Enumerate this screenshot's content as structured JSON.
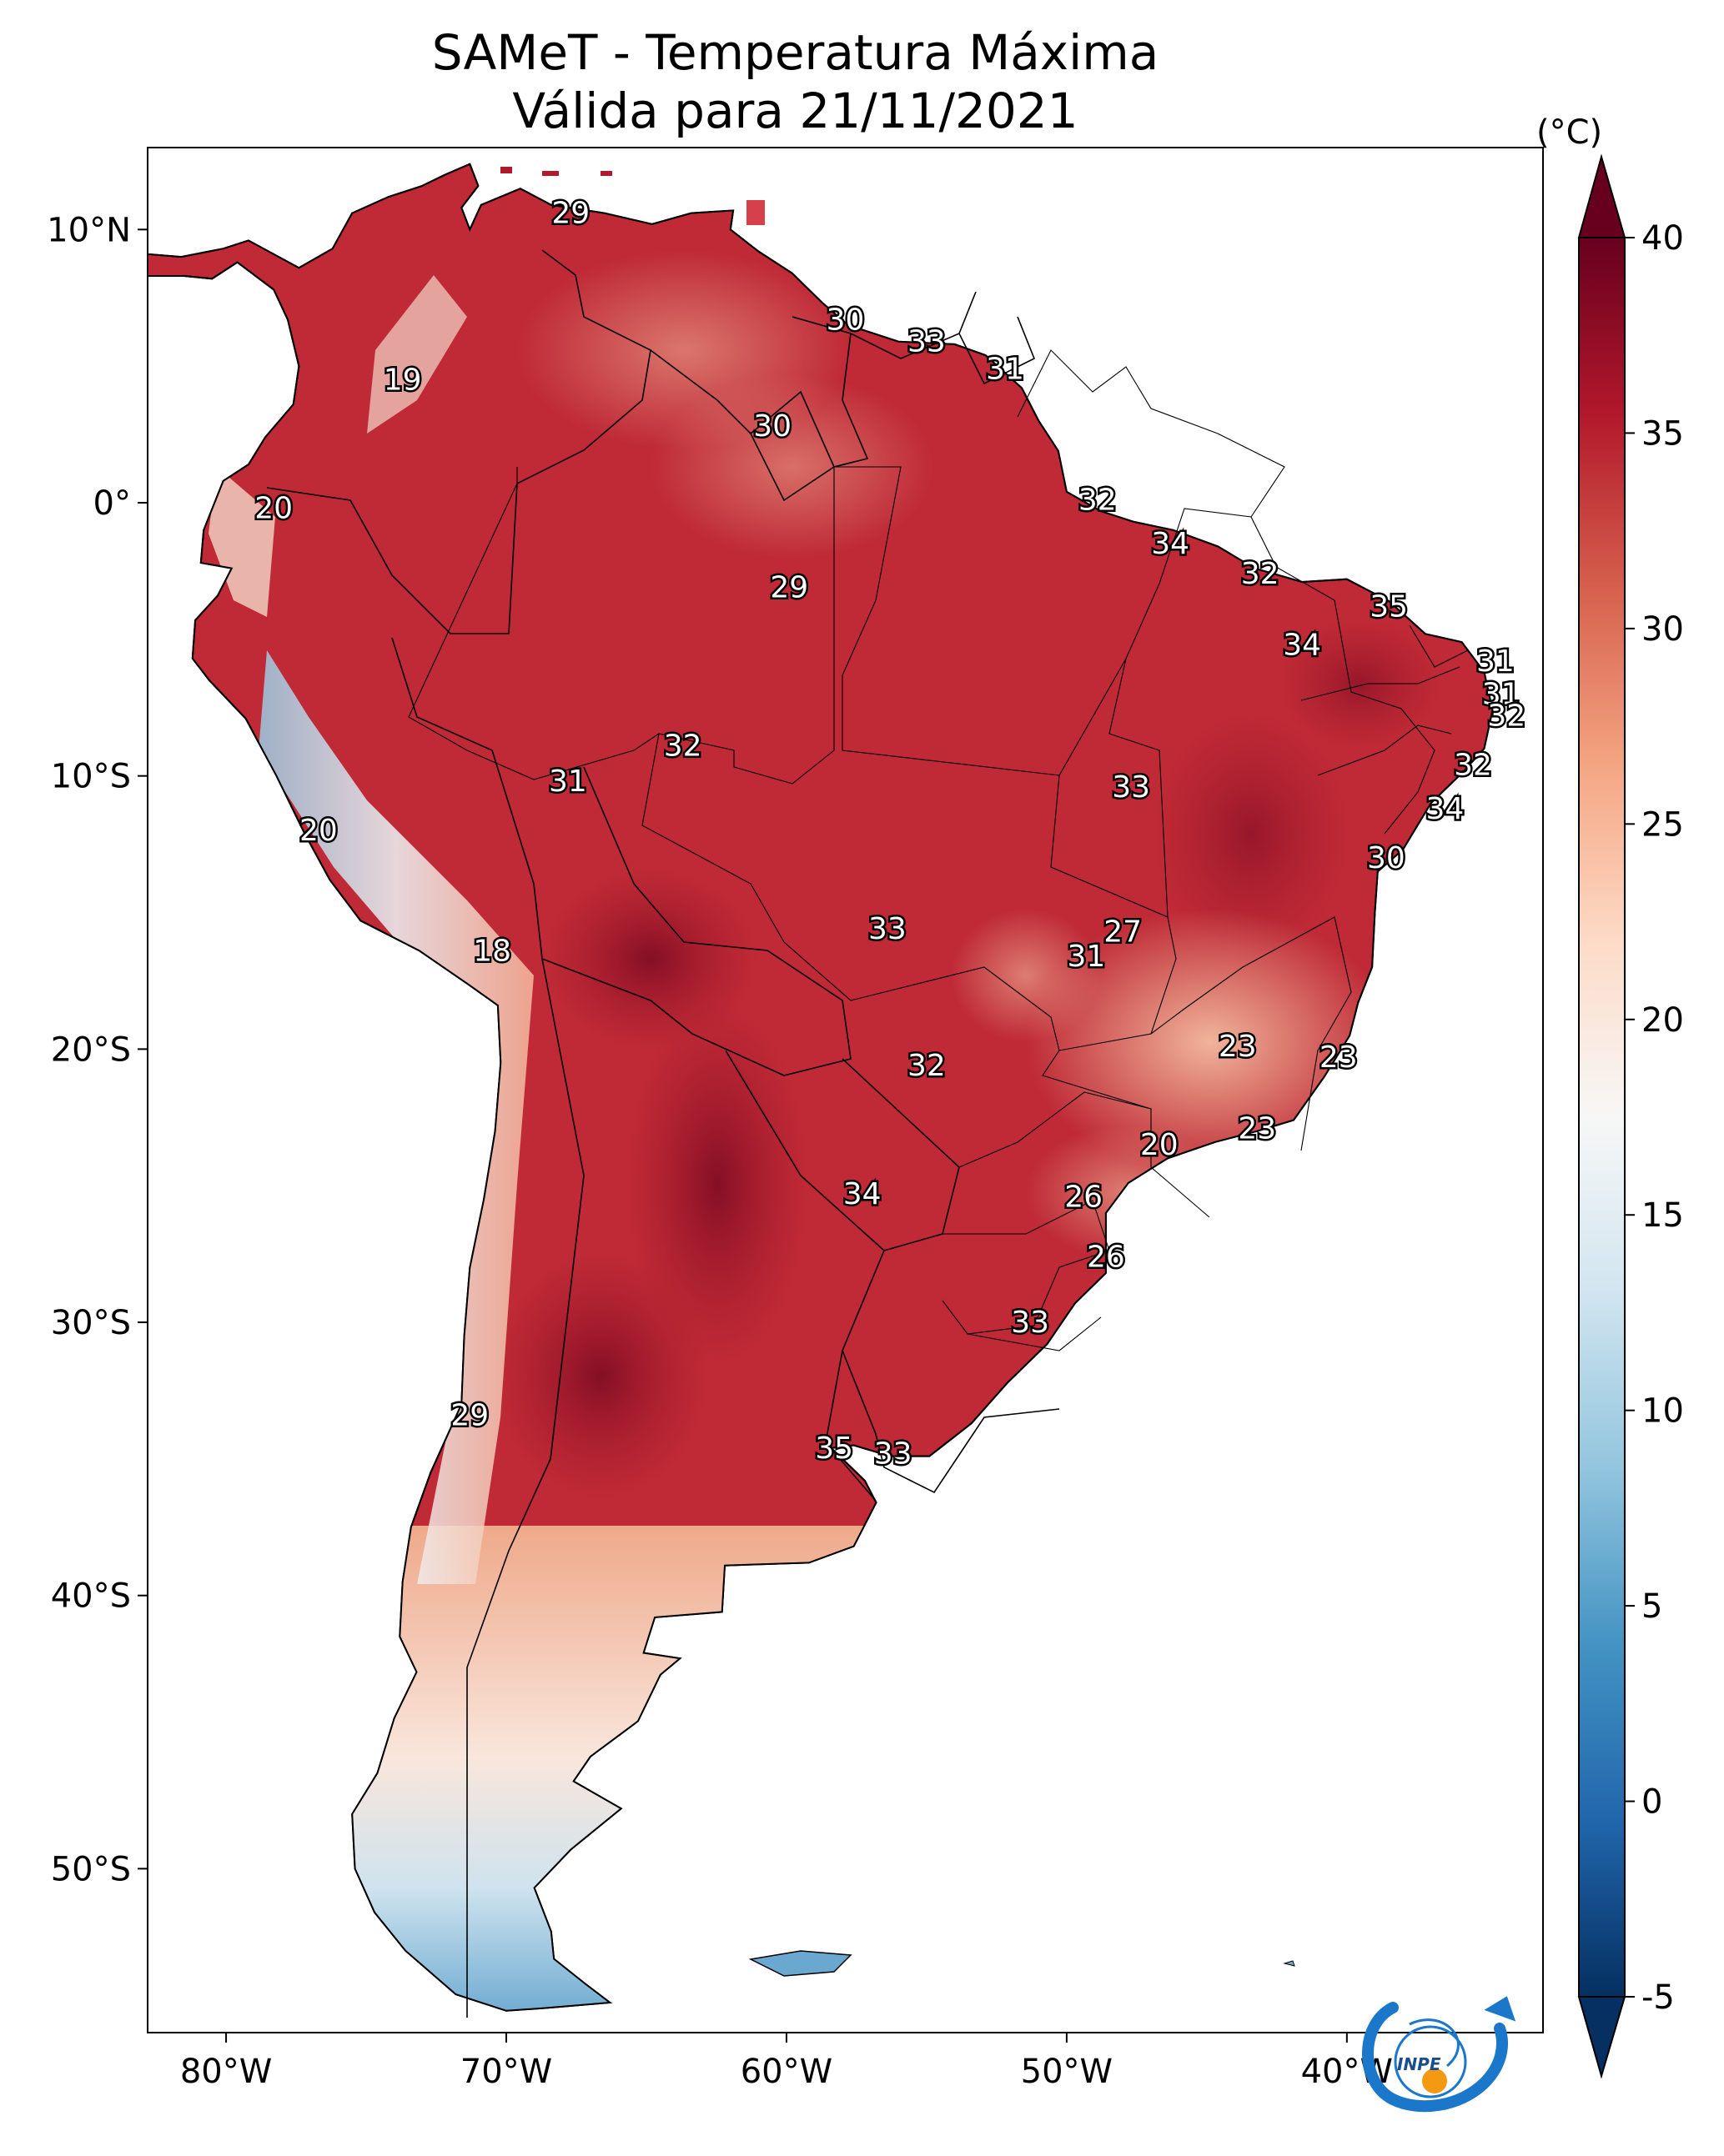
{
  "title": {
    "line1": "SAMeT - Temperatura Máxima",
    "line2": "Válida para 21/11/2021"
  },
  "map": {
    "lon_range": [
      -82.8,
      -33.0
    ],
    "lat_range": [
      -56.0,
      13.0
    ],
    "lon_ticks": [
      {
        "value": -80,
        "label": "80°W"
      },
      {
        "value": -70,
        "label": "70°W"
      },
      {
        "value": -60,
        "label": "60°W"
      },
      {
        "value": -50,
        "label": "50°W"
      },
      {
        "value": -40,
        "label": "40°W"
      }
    ],
    "lat_ticks": [
      {
        "value": 10,
        "label": "10°N"
      },
      {
        "value": 0,
        "label": "0°"
      },
      {
        "value": -10,
        "label": "10°S"
      },
      {
        "value": -20,
        "label": "20°S"
      },
      {
        "value": -30,
        "label": "30°S"
      },
      {
        "value": -40,
        "label": "40°S"
      },
      {
        "value": -50,
        "label": "50°S"
      }
    ],
    "station_values": [
      {
        "lon": -67.7,
        "lat": 10.6,
        "label": "29"
      },
      {
        "lon": -57.9,
        "lat": 6.7,
        "label": "30"
      },
      {
        "lon": -55.0,
        "lat": 5.9,
        "label": "33"
      },
      {
        "lon": -52.2,
        "lat": 4.9,
        "label": "31"
      },
      {
        "lon": -73.7,
        "lat": 4.5,
        "label": "19"
      },
      {
        "lon": -60.5,
        "lat": 2.8,
        "label": "30"
      },
      {
        "lon": -48.9,
        "lat": 0.1,
        "label": "32"
      },
      {
        "lon": -78.3,
        "lat": -0.2,
        "label": "20"
      },
      {
        "lon": -46.3,
        "lat": -1.5,
        "label": "34"
      },
      {
        "lon": -43.1,
        "lat": -2.6,
        "label": "32"
      },
      {
        "lon": -59.9,
        "lat": -3.1,
        "label": "29"
      },
      {
        "lon": -38.5,
        "lat": -3.8,
        "label": "35"
      },
      {
        "lon": -41.6,
        "lat": -5.2,
        "label": "34"
      },
      {
        "lon": -34.7,
        "lat": -5.8,
        "label": "31"
      },
      {
        "lon": -34.5,
        "lat": -7.0,
        "label": "31"
      },
      {
        "lon": -34.3,
        "lat": -7.8,
        "label": "32"
      },
      {
        "lon": -63.7,
        "lat": -8.9,
        "label": "32"
      },
      {
        "lon": -35.5,
        "lat": -9.6,
        "label": "32"
      },
      {
        "lon": -67.8,
        "lat": -10.2,
        "label": "31"
      },
      {
        "lon": -47.7,
        "lat": -10.4,
        "label": "33"
      },
      {
        "lon": -36.5,
        "lat": -11.2,
        "label": "34"
      },
      {
        "lon": -76.7,
        "lat": -12.0,
        "label": "20"
      },
      {
        "lon": -38.6,
        "lat": -13.0,
        "label": "30"
      },
      {
        "lon": -56.4,
        "lat": -15.6,
        "label": "33"
      },
      {
        "lon": -48.0,
        "lat": -15.7,
        "label": "27"
      },
      {
        "lon": -49.3,
        "lat": -16.6,
        "label": "31"
      },
      {
        "lon": -70.5,
        "lat": -16.4,
        "label": "18"
      },
      {
        "lon": -43.9,
        "lat": -19.9,
        "label": "23"
      },
      {
        "lon": -40.3,
        "lat": -20.3,
        "label": "23"
      },
      {
        "lon": -55.0,
        "lat": -20.6,
        "label": "32"
      },
      {
        "lon": -43.2,
        "lat": -22.9,
        "label": "23"
      },
      {
        "lon": -46.7,
        "lat": -23.5,
        "label": "20"
      },
      {
        "lon": -57.3,
        "lat": -25.3,
        "label": "34"
      },
      {
        "lon": -49.4,
        "lat": -25.4,
        "label": "26"
      },
      {
        "lon": -48.6,
        "lat": -27.6,
        "label": "26"
      },
      {
        "lon": -51.3,
        "lat": -30.0,
        "label": "33"
      },
      {
        "lon": -71.3,
        "lat": -33.4,
        "label": "29"
      },
      {
        "lon": -58.3,
        "lat": -34.6,
        "label": "35"
      },
      {
        "lon": -56.2,
        "lat": -34.8,
        "label": "33"
      }
    ]
  },
  "colorbar": {
    "unit": "(°C)",
    "vmin": -5,
    "vmax": 40,
    "ticks": [
      {
        "value": 40,
        "label": "40"
      },
      {
        "value": 35,
        "label": "35"
      },
      {
        "value": 30,
        "label": "30"
      },
      {
        "value": 25,
        "label": "25"
      },
      {
        "value": 20,
        "label": "20"
      },
      {
        "value": 15,
        "label": "15"
      },
      {
        "value": 10,
        "label": "10"
      },
      {
        "value": 5,
        "label": "5"
      },
      {
        "value": 0,
        "label": "0"
      },
      {
        "value": -5,
        "label": "-5"
      }
    ],
    "colors": [
      "#053061",
      "#2166ac",
      "#4393c3",
      "#92c5de",
      "#d1e5f0",
      "#f7f7f7",
      "#fddbc7",
      "#f4a582",
      "#d6604d",
      "#b2182b",
      "#67001f"
    ]
  },
  "logo": {
    "text": "INPE",
    "arrow_color": "#1a77c9",
    "dot_color": "#f39a12"
  }
}
